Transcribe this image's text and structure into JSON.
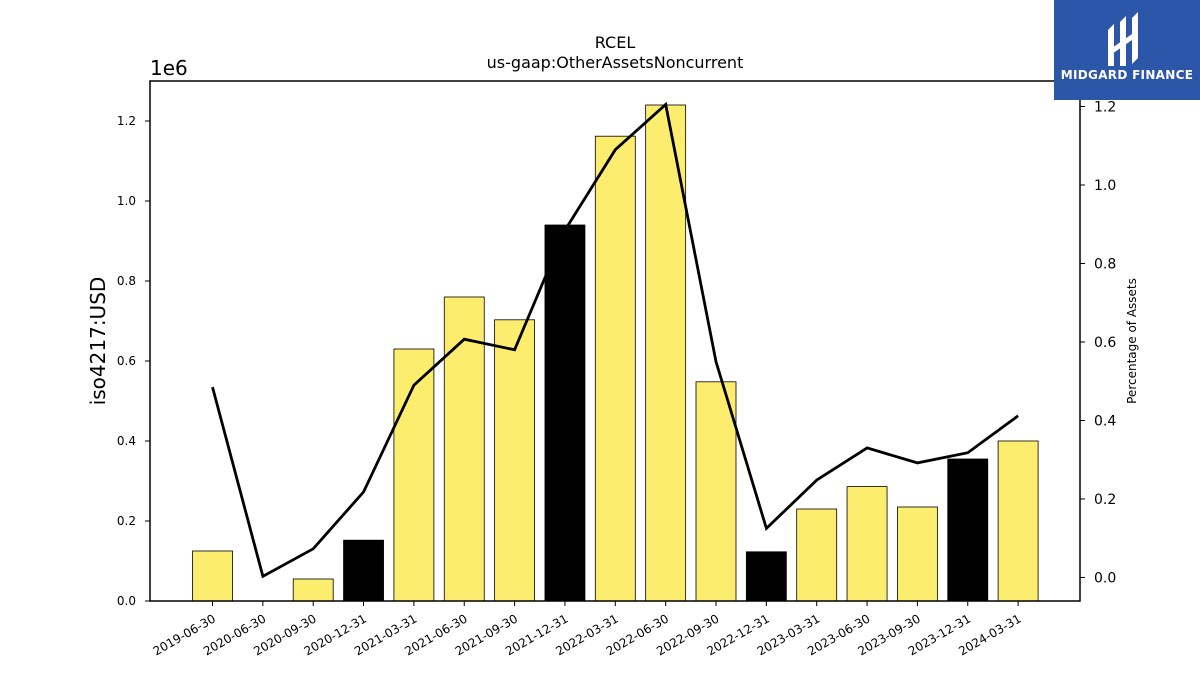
{
  "chart_data": {
    "type": "bar",
    "title": "RCEL",
    "subtitle": "us-gaap:OtherAssetsNoncurrent",
    "ylabel": "iso4217:USD",
    "y2label": "Percentage of Assets",
    "y_exponent_label": "1e6",
    "categories": [
      "2019-06-30",
      "2020-06-30",
      "2020-09-30",
      "2020-12-31",
      "2021-03-31",
      "2021-06-30",
      "2021-09-30",
      "2021-12-31",
      "2022-03-31",
      "2022-06-30",
      "2022-09-30",
      "2022-12-31",
      "2023-03-31",
      "2023-06-30",
      "2023-09-30",
      "2023-12-31",
      "2024-03-31"
    ],
    "series": [
      {
        "type": "bar",
        "values": [
          0.125,
          0.0,
          0.055,
          0.152,
          0.63,
          0.76,
          0.703,
          0.94,
          1.162,
          1.24,
          0.548,
          0.123,
          0.23,
          0.286,
          0.235,
          0.355,
          0.4
        ],
        "bar_colors": [
          "#fded6e",
          "#fded6e",
          "#fded6e",
          "#000000",
          "#fded6e",
          "#fded6e",
          "#fded6e",
          "#000000",
          "#fded6e",
          "#fded6e",
          "#fded6e",
          "#000000",
          "#fded6e",
          "#fded6e",
          "#fded6e",
          "#000000",
          "#fded6e"
        ]
      },
      {
        "type": "line",
        "axis": "right",
        "color": "#000000",
        "values": [
          0.485,
          0.003,
          0.073,
          0.218,
          0.49,
          0.607,
          0.58,
          0.885,
          1.09,
          1.205,
          0.55,
          0.125,
          0.248,
          0.33,
          0.292,
          0.318,
          0.412
        ]
      }
    ],
    "ylim": [
      0,
      1.3
    ],
    "yticks": [
      0.0,
      0.2,
      0.4,
      0.6,
      0.8,
      1.0,
      1.2
    ],
    "y2lim": [
      -0.06,
      1.265
    ],
    "y2ticks": [
      0.0,
      0.2,
      0.4,
      0.6,
      0.8,
      1.0,
      1.2
    ],
    "grid": false,
    "legend": "none"
  },
  "logo": {
    "text": "MIDGARD FINANCE",
    "icon": "midgard-logo-icon",
    "background": "#2c56a8"
  }
}
